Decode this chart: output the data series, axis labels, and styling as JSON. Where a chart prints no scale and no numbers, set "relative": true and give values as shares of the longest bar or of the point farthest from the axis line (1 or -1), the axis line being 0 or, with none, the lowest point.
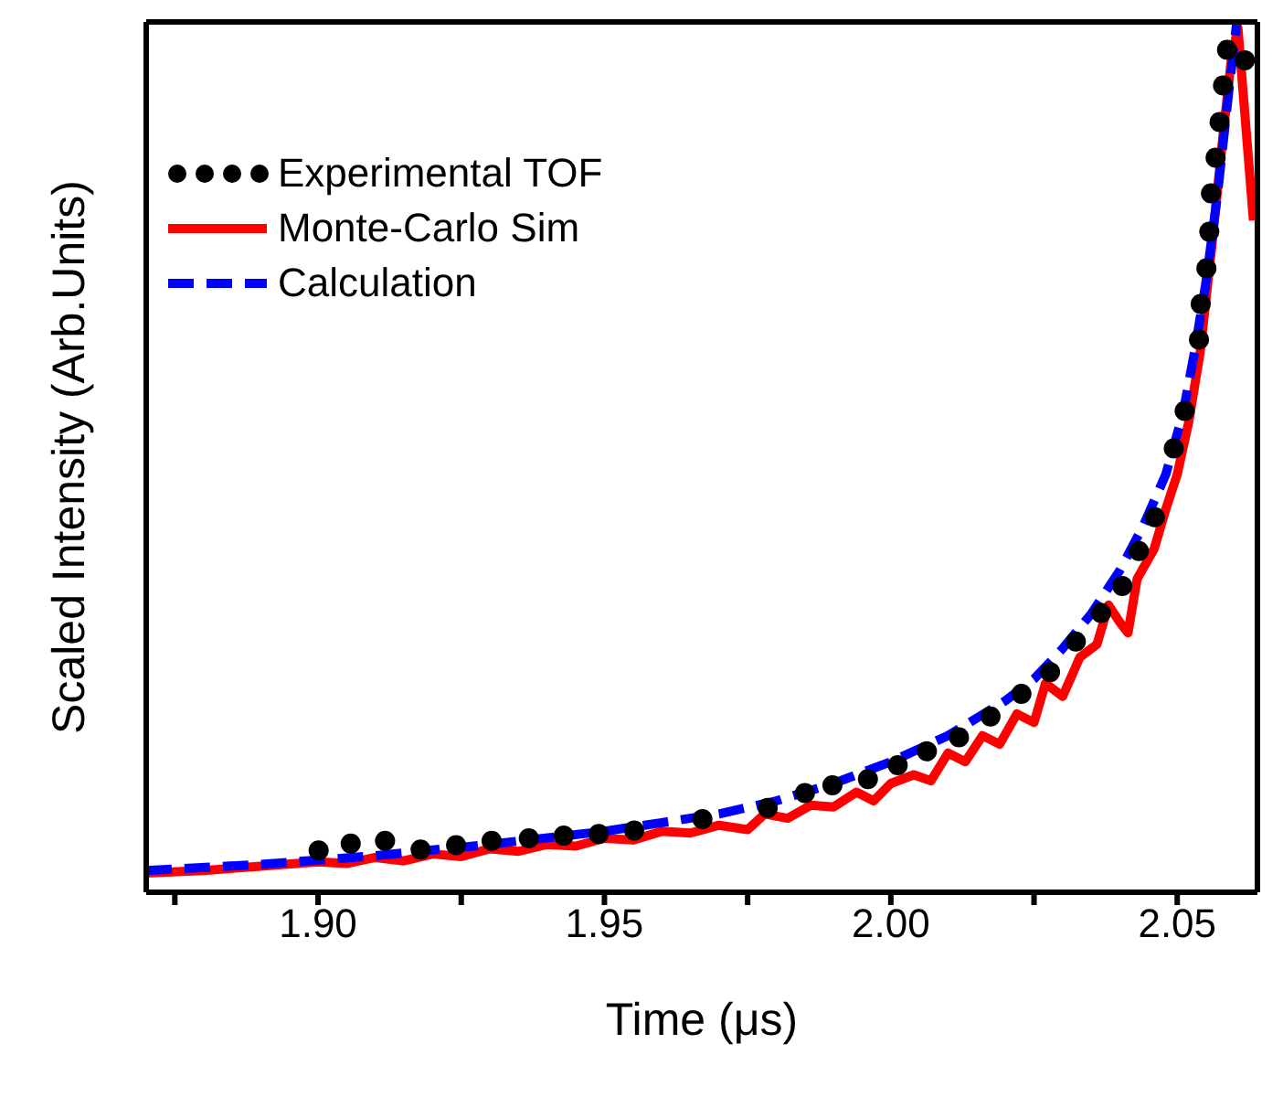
{
  "chart_data": {
    "type": "line",
    "xlabel": "Time (μs)",
    "ylabel": "Scaled Intensity (Arb.Units)",
    "relative": true,
    "xlim": [
      1.87,
      2.064
    ],
    "xticks": [
      {
        "value": 1.875,
        "label": null
      },
      {
        "value": 1.9,
        "label": "1.90"
      },
      {
        "value": 1.925,
        "label": null
      },
      {
        "value": 1.95,
        "label": "1.95"
      },
      {
        "value": 1.975,
        "label": null
      },
      {
        "value": 2.0,
        "label": "2.00"
      },
      {
        "value": 2.025,
        "label": null
      },
      {
        "value": 2.05,
        "label": "2.05"
      }
    ],
    "legend": "top left",
    "series": [
      {
        "name": "Experimental TOF",
        "type": "scatter",
        "marker": "circle",
        "color": "#000000",
        "x": [
          1.9001,
          1.9057,
          1.9117,
          1.9179,
          1.9241,
          1.9303,
          1.9368,
          1.9429,
          1.949,
          1.9552,
          1.9671,
          1.9785,
          1.985,
          1.9898,
          1.996,
          2.0012,
          2.0063,
          2.0119,
          2.0174,
          2.0228,
          2.0278,
          2.0323,
          2.0367,
          2.0404,
          2.0433,
          2.0461,
          2.0494,
          2.0513,
          2.0538,
          2.0541,
          2.0551,
          2.0556,
          2.0559,
          2.0567,
          2.0574,
          2.058,
          2.0587,
          2.0618
        ],
        "values": [
          0.048,
          0.056,
          0.059,
          0.049,
          0.054,
          0.059,
          0.062,
          0.065,
          0.067,
          0.071,
          0.084,
          0.097,
          0.114,
          0.123,
          0.13,
          0.146,
          0.162,
          0.178,
          0.202,
          0.228,
          0.253,
          0.288,
          0.321,
          0.352,
          0.392,
          0.431,
          0.51,
          0.553,
          0.635,
          0.676,
          0.717,
          0.759,
          0.803,
          0.844,
          0.885,
          0.927,
          0.968,
          0.956
        ]
      },
      {
        "name": "Monte-Carlo Sim",
        "type": "line",
        "line_style": "solid",
        "color": "#ff0000",
        "x": [
          1.87,
          1.88,
          1.89,
          1.9,
          1.905,
          1.91,
          1.915,
          1.92,
          1.925,
          1.93,
          1.935,
          1.94,
          1.945,
          1.95,
          1.955,
          1.96,
          1.965,
          1.97,
          1.975,
          1.978,
          1.982,
          1.986,
          1.99,
          1.994,
          1.997,
          2.0,
          2.004,
          2.007,
          2.01,
          2.013,
          2.016,
          2.019,
          2.022,
          2.025,
          2.027,
          2.03,
          2.033,
          2.036,
          2.038,
          2.04,
          2.0414,
          2.043,
          2.046,
          2.048,
          2.05,
          2.052,
          2.054,
          2.056,
          2.058,
          2.0595,
          2.0606,
          2.0633
        ],
        "values": [
          0.022,
          0.025,
          0.03,
          0.035,
          0.033,
          0.04,
          0.036,
          0.044,
          0.041,
          0.05,
          0.047,
          0.055,
          0.053,
          0.062,
          0.06,
          0.07,
          0.068,
          0.077,
          0.072,
          0.09,
          0.085,
          0.1,
          0.098,
          0.115,
          0.105,
          0.125,
          0.135,
          0.128,
          0.16,
          0.15,
          0.18,
          0.17,
          0.205,
          0.195,
          0.24,
          0.225,
          0.27,
          0.285,
          0.33,
          0.31,
          0.298,
          0.36,
          0.395,
          0.44,
          0.48,
          0.54,
          0.62,
          0.74,
          0.87,
          0.96,
          0.993,
          0.772
        ]
      },
      {
        "name": "Calculation",
        "type": "line",
        "line_style": "dashed",
        "color": "#0000ff",
        "x": [
          1.87,
          1.89,
          1.91,
          1.93,
          1.95,
          1.96,
          1.97,
          1.98,
          1.99,
          2.0,
          2.01,
          2.02,
          2.025,
          2.03,
          2.035,
          2.04,
          2.044,
          2.048,
          2.051,
          2.053,
          2.055,
          2.057,
          2.059,
          2.0604
        ],
        "values": [
          0.025,
          0.032,
          0.042,
          0.055,
          0.07,
          0.08,
          0.09,
          0.105,
          0.125,
          0.15,
          0.18,
          0.22,
          0.245,
          0.28,
          0.32,
          0.37,
          0.42,
          0.48,
          0.55,
          0.62,
          0.7,
          0.8,
          0.92,
          1.0
        ]
      }
    ]
  }
}
